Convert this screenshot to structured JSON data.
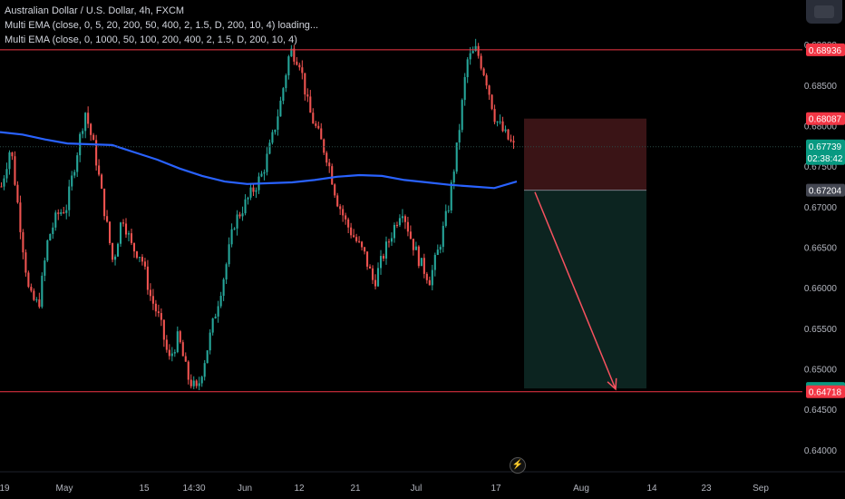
{
  "legend": {
    "title": "Australian Dollar / U.S. Dollar, 4h, FXCM",
    "indicator1": "Multi EMA (close, 0, 5, 20, 200, 50, 400, 2, 1.5, D, 200, 10, 4) loading...",
    "indicator2": "Multi EMA (close, 0, 1000, 50, 100, 200, 400, 2, 1.5, D, 200, 10, 4)"
  },
  "colors": {
    "background": "#000000",
    "bull_candle": "#26a69a",
    "bear_candle": "#ef5350",
    "ema_line": "#2962ff",
    "resistance_line": "#f23645",
    "stop_zone": "#3a1416",
    "target_zone": "#0c2420",
    "arrow": "#f7525f"
  },
  "icons": {
    "top_right": "layout-widget-icon",
    "bottom": "flash-icon"
  },
  "chart_data": {
    "type": "candlestick",
    "symbol": "AUDUSD",
    "timeframe": "4h",
    "x_tick_labels": [
      "19",
      "May",
      "15",
      "14:30",
      "Jun",
      "12",
      "21",
      "Jul",
      "17",
      "Aug",
      "14",
      "23",
      "Sep"
    ],
    "y_tick_labels": [
      "0.69000",
      "0.68500",
      "0.68000",
      "0.67500",
      "0.67000",
      "0.66500",
      "0.66000",
      "0.65500",
      "0.65000",
      "0.64500",
      "0.64000"
    ],
    "ylim": [
      0.6373,
      0.6955
    ],
    "price_labels": [
      {
        "value": "0.68936",
        "kind": "resistance",
        "color": "#f23645"
      },
      {
        "value": "0.68087",
        "kind": "stop",
        "color": "#f23645"
      },
      {
        "value": "0.67739",
        "countdown": "02:38:42",
        "kind": "last",
        "color": "#089981"
      },
      {
        "value": "0.67204",
        "kind": "entry",
        "color": "#434651"
      },
      {
        "value": "0.64758",
        "kind": "target",
        "color": "#089981"
      },
      {
        "value": "0.64718",
        "kind": "support",
        "color": "#f23645"
      }
    ],
    "horizontal_levels": [
      0.68936,
      0.64718
    ],
    "position": {
      "entry": 0.67204,
      "stop": 0.68087,
      "target": 0.64758,
      "side": "short"
    },
    "arrow": {
      "from": 0.6718,
      "to": 0.6475
    },
    "ema_line": [
      0.6792,
      0.6789,
      0.6783,
      0.6778,
      0.6777,
      0.6776,
      0.6767,
      0.6758,
      0.6747,
      0.6738,
      0.6731,
      0.6728,
      0.6729,
      0.673,
      0.6733,
      0.6737,
      0.6739,
      0.6738,
      0.6733,
      0.673,
      0.6727,
      0.6725,
      0.6723,
      0.6731
    ],
    "price_path": [
      0.6725,
      0.6775,
      0.668,
      0.659,
      0.6578,
      0.666,
      0.669,
      0.67,
      0.676,
      0.6818,
      0.677,
      0.67,
      0.663,
      0.669,
      0.665,
      0.664,
      0.659,
      0.656,
      0.651,
      0.654,
      0.649,
      0.6472,
      0.652,
      0.657,
      0.662,
      0.668,
      0.67,
      0.672,
      0.674,
      0.678,
      0.683,
      0.6894,
      0.688,
      0.682,
      0.679,
      0.676,
      0.671,
      0.668,
      0.666,
      0.664,
      0.6605,
      0.664,
      0.667,
      0.67,
      0.666,
      0.663,
      0.661,
      0.665,
      0.67,
      0.678,
      0.688,
      0.6894,
      0.686,
      0.681,
      0.679,
      0.6774
    ]
  }
}
